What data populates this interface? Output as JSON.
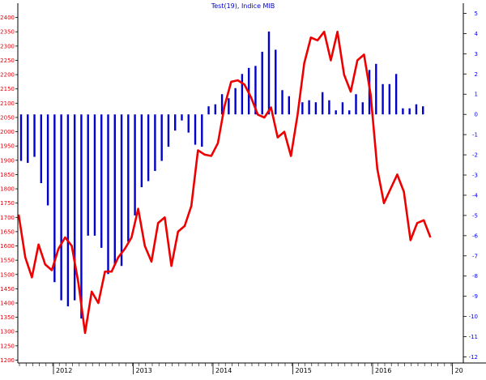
{
  "chart_data": {
    "type": "bar",
    "title": "Test(19), Indice MIB",
    "x_tick_labels": [
      "2012",
      "2013",
      "2014",
      "2015",
      "2016",
      "20"
    ],
    "left_axis": {
      "ylim": [
        1190,
        2450
      ],
      "ticks": [
        1200,
        1250,
        1300,
        1350,
        1400,
        1450,
        1500,
        1550,
        1600,
        1650,
        1700,
        1750,
        1800,
        1850,
        1900,
        1950,
        2000,
        2050,
        2100,
        2150,
        2200,
        2250,
        2300,
        2350,
        2400
      ],
      "color": "#e8000b"
    },
    "right_axis": {
      "ylim": [
        -12.3,
        5.5
      ],
      "ticks": [
        -12,
        -11,
        -10,
        -9,
        -8,
        -7,
        -6,
        -5,
        -4,
        -3,
        -2,
        -1,
        0,
        1,
        2,
        3,
        4,
        5
      ],
      "color": "#0000ee"
    },
    "series": [
      {
        "type": "bar",
        "axis": "right",
        "color": "#0000cc",
        "baseline": 0,
        "values": [
          -2.3,
          -2.4,
          -2.1,
          -3.4,
          -4.5,
          -8.3,
          -9.2,
          -9.5,
          -9.2,
          -10.1,
          -6.0,
          -6.0,
          -6.6,
          -7.9,
          -7.4,
          -7.5,
          -6.3,
          -5.0,
          -3.6,
          -3.3,
          -2.8,
          -2.3,
          -1.6,
          -0.8,
          -0.3,
          -0.9,
          -1.5,
          -1.6,
          0.4,
          0.5,
          1.0,
          0.8,
          1.3,
          2.0,
          2.3,
          2.4,
          3.1,
          4.1,
          3.2,
          1.2,
          0.9,
          0.0,
          0.6,
          0.7,
          0.6,
          1.1,
          0.7,
          0.2,
          0.6,
          0.2,
          1.0,
          0.6,
          2.2,
          2.5,
          1.5,
          1.5,
          2.0,
          0.3,
          0.3,
          0.5,
          0.4
        ]
      },
      {
        "type": "line",
        "axis": "left",
        "color": "#ee0000",
        "values": [
          1710,
          1560,
          1490,
          1605,
          1535,
          1515,
          1590,
          1630,
          1600,
          1470,
          1295,
          1440,
          1400,
          1510,
          1510,
          1560,
          1590,
          1630,
          1730,
          1600,
          1545,
          1680,
          1700,
          1530,
          1650,
          1670,
          1740,
          1935,
          1920,
          1915,
          1960,
          2090,
          2175,
          2180,
          2165,
          2120,
          2060,
          2050,
          2085,
          1980,
          2000,
          1915,
          2060,
          2240,
          2330,
          2320,
          2350,
          2250,
          2350,
          2200,
          2140,
          2250,
          2270,
          2130,
          1870,
          1750,
          1800,
          1850,
          1790,
          1620,
          1680,
          1690,
          1630
        ]
      }
    ]
  }
}
